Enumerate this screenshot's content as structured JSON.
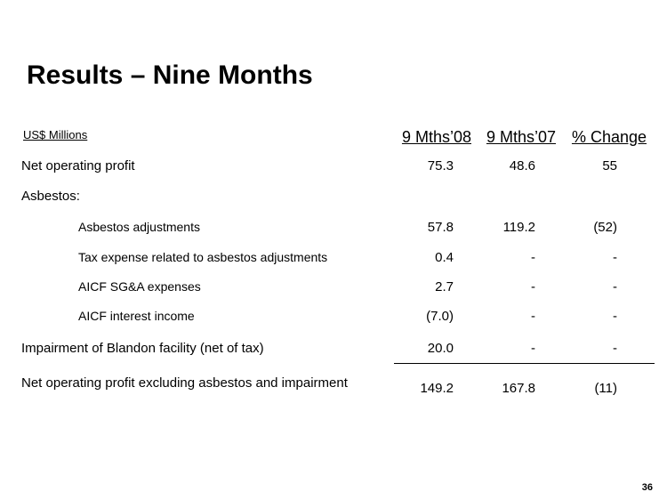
{
  "title": "Results – Nine Months",
  "units_label": "US$ Millions",
  "columns": [
    "9 Mths’08",
    "9 Mths’07",
    "% Change"
  ],
  "rows": [
    {
      "label": "Net operating profit",
      "values": [
        "75.3",
        "48.6",
        "55"
      ]
    },
    {
      "label": "Asbestos:",
      "values": [
        "",
        "",
        ""
      ]
    },
    {
      "label": "Asbestos adjustments",
      "values": [
        "57.8",
        "119.2",
        "(52)"
      ]
    },
    {
      "label": "Tax expense related to asbestos adjustments",
      "values": [
        "0.4",
        "-",
        "-"
      ]
    },
    {
      "label": "AICF SG&A expenses",
      "values": [
        "2.7",
        "-",
        "-"
      ]
    },
    {
      "label": "AICF interest income",
      "values": [
        "(7.0)",
        "-",
        "-"
      ]
    },
    {
      "label": "Impairment of Blandon facility (net of tax)",
      "values": [
        "20.0",
        "-",
        "-"
      ]
    },
    {
      "label": "Net operating profit excluding asbestos and impairment",
      "values": [
        "149.2",
        "167.8",
        "(11)"
      ]
    }
  ],
  "page_number": "36"
}
